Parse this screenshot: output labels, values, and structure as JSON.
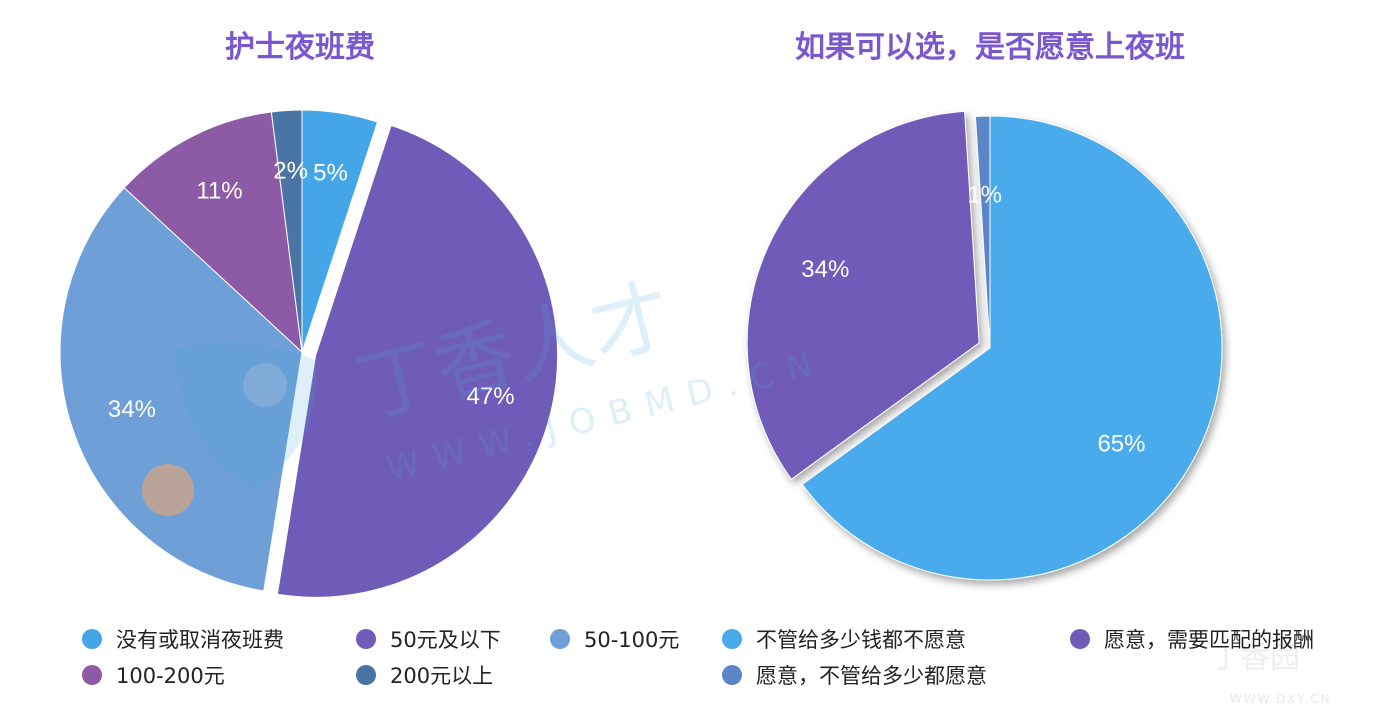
{
  "chart_data": [
    {
      "type": "pie",
      "title": "护士夜班费",
      "slices": [
        {
          "label": "没有或取消夜班费",
          "value": 5,
          "color": "#44a6e6",
          "display": "5%"
        },
        {
          "label": "50元及以下",
          "value": 47,
          "color": "#6f5cb8",
          "display": "47%",
          "exploded": true
        },
        {
          "label": "50-100元",
          "value": 34,
          "color": "#6e9fd6",
          "display": "34%"
        },
        {
          "label": "100-200元",
          "value": 11,
          "color": "#8d5aa6",
          "display": "11%"
        },
        {
          "label": "200元以上",
          "value": 2,
          "color": "#4a74a3",
          "display": "2%"
        }
      ]
    },
    {
      "type": "pie",
      "title": "如果可以选，是否愿意上夜班",
      "slices": [
        {
          "label": "不管给多少钱都不愿意",
          "value": 65,
          "color": "#4aabeb",
          "display": "65%"
        },
        {
          "label": "愿意，需要匹配的报酬",
          "value": 34,
          "color": "#6f5cb8",
          "display": "34%",
          "exploded": true
        },
        {
          "label": "愿意，不管给多少都愿意",
          "value": 1,
          "color": "#5a86c8",
          "display": "1%"
        }
      ]
    }
  ],
  "watermark": {
    "main": "丁香人才",
    "url": "WWW.JOBMD.CN",
    "corner": "丁香园",
    "corner_url": "WWW.DXY.CN"
  }
}
